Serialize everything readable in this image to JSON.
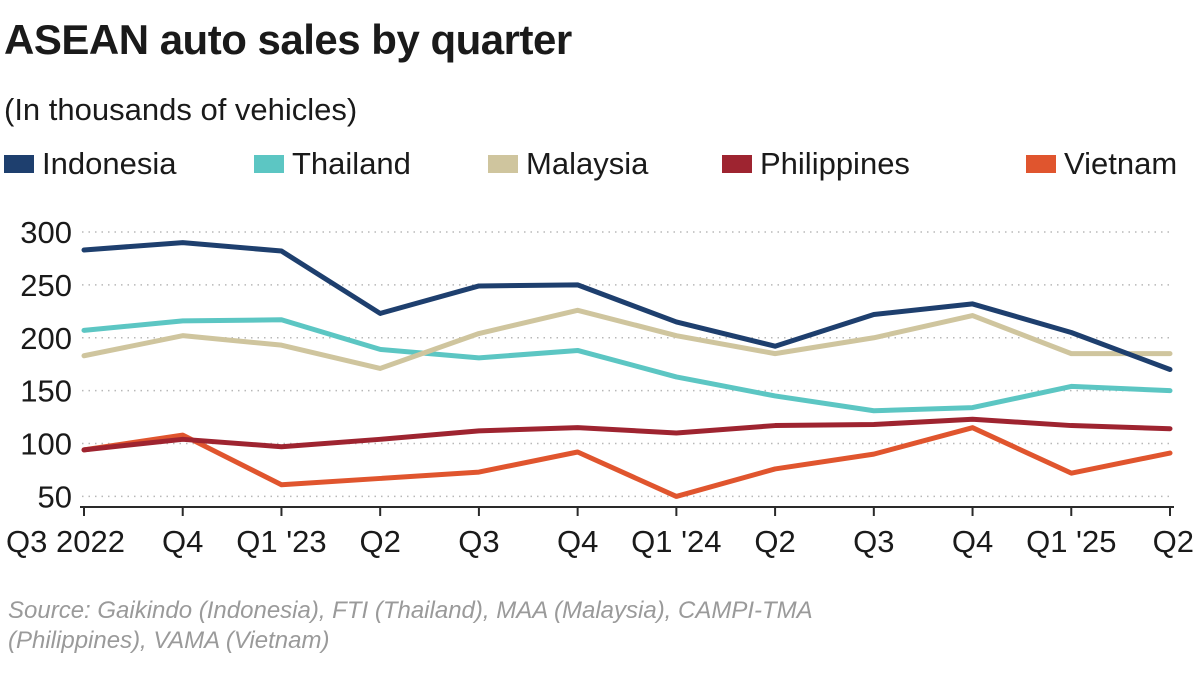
{
  "header": {
    "title": "ASEAN auto sales by quarter",
    "subtitle": "(In thousands of vehicles)"
  },
  "legend": [
    {
      "name": "Indonesia",
      "color": "#1e3f6e"
    },
    {
      "name": "Thailand",
      "color": "#5cc6c3"
    },
    {
      "name": "Malaysia",
      "color": "#cfc59e"
    },
    {
      "name": "Philippines",
      "color": "#9e2430"
    },
    {
      "name": "Vietnam",
      "color": "#e0552e"
    }
  ],
  "chart_data": {
    "type": "line",
    "title": "ASEAN auto sales by quarter",
    "subtitle": "(In thousands of vehicles)",
    "xlabel": "",
    "ylabel": "",
    "x": [
      "Q3 2022",
      "Q4",
      "Q1 '23",
      "Q2",
      "Q3",
      "Q4",
      "Q1 '24",
      "Q2",
      "Q3",
      "Q4",
      "Q1 '25",
      "Q2"
    ],
    "ylim": [
      40,
      300
    ],
    "yticks": [
      50,
      100,
      150,
      200,
      250,
      300
    ],
    "grid": "horizontal dotted",
    "legend_position": "top",
    "series": [
      {
        "name": "Indonesia",
        "color": "#1e3f6e",
        "values": [
          283,
          290,
          282,
          223,
          249,
          250,
          215,
          192,
          222,
          232,
          205,
          170
        ]
      },
      {
        "name": "Thailand",
        "color": "#5cc6c3",
        "values": [
          207,
          216,
          217,
          189,
          181,
          188,
          163,
          145,
          131,
          134,
          154,
          150
        ]
      },
      {
        "name": "Malaysia",
        "color": "#cfc59e",
        "values": [
          183,
          202,
          193,
          171,
          204,
          226,
          202,
          185,
          200,
          221,
          185,
          185
        ]
      },
      {
        "name": "Philippines",
        "color": "#9e2430",
        "values": [
          94,
          104,
          97,
          104,
          112,
          115,
          110,
          117,
          118,
          123,
          117,
          114
        ]
      },
      {
        "name": "Vietnam",
        "color": "#e0552e",
        "values": [
          94,
          108,
          61,
          67,
          73,
          92,
          50,
          76,
          90,
          115,
          72,
          91
        ]
      }
    ]
  },
  "footer": {
    "source_line1": "Source: Gaikindo (Indonesia), FTI (Thailand), MAA (Malaysia), CAMPI-TMA",
    "source_line2": "(Philippines), VAMA (Vietnam)"
  }
}
